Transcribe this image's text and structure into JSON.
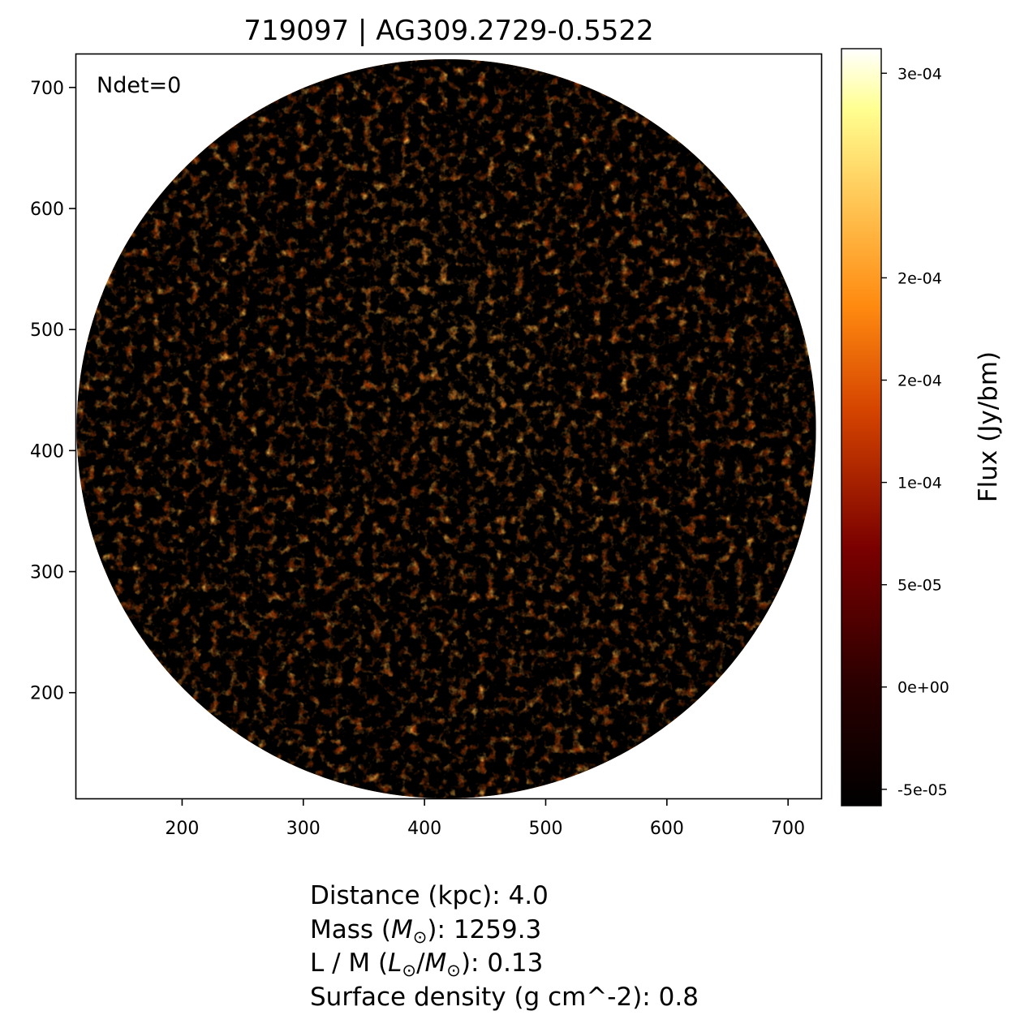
{
  "figure": {
    "title": "719097 | AG309.2729-0.5522",
    "annotation": "Ndet=0"
  },
  "chart_data": {
    "type": "heatmap",
    "title": "719097 | AG309.2729-0.5522",
    "xlabel": "",
    "ylabel": "",
    "xlim": [
      112,
      728
    ],
    "ylim": [
      112,
      728
    ],
    "x_ticks": [
      200,
      300,
      400,
      500,
      600,
      700
    ],
    "y_ticks": [
      200,
      300,
      400,
      500,
      600,
      700
    ],
    "x_tick_labels": [
      "200",
      "300",
      "400",
      "500",
      "600",
      "700"
    ],
    "y_tick_labels": [
      "200",
      "300",
      "400",
      "500",
      "600",
      "700"
    ],
    "map_region": {
      "shape": "circle",
      "center": [
        418,
        418
      ],
      "radius": 305
    },
    "bright_ridge": "diagonal emission ridge from upper-center toward lower-right",
    "detections": 0,
    "colormap": "afmhot",
    "colorbar": {
      "label": "Flux (Jy/bm)",
      "vmin": -5.8e-05,
      "vmax": 0.000312,
      "ticks": [
        -5e-05,
        0,
        5e-05,
        0.0001,
        0.00015,
        0.0002,
        0.0003
      ],
      "tick_labels": [
        "-5e-05",
        "0e+00",
        "5e-05",
        "1e-04",
        "2e-04",
        "2e-04",
        "3e-04"
      ]
    },
    "grid": false
  },
  "info": {
    "distance_label": "Distance (kpc): 4.0",
    "mass_prefix": "Mass (",
    "mass_symbol": "M",
    "mass_sub": "⊙",
    "mass_suffix": "): 1259.3",
    "lm_prefix": "L / M (",
    "lm_num": "L",
    "lm_num_sub": "⊙",
    "lm_slash": "/",
    "lm_den": "M",
    "lm_den_sub": "⊙",
    "lm_suffix": "): 0.13",
    "surface_density_label": "Surface density (g cm^-2): 0.8"
  }
}
